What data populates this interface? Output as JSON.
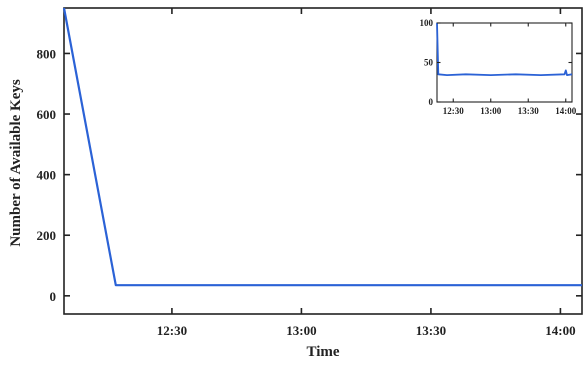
{
  "chart_data": [
    {
      "type": "line",
      "title": "",
      "xlabel": "Time",
      "ylabel": "Number of Available Keys",
      "x_tick_labels": [
        "12:30",
        "13:00",
        "13:30",
        "14:00"
      ],
      "x_tick_values": [
        "12:30",
        "13:00",
        "13:30",
        "14:00"
      ],
      "xlim": [
        "12:05",
        "14:05"
      ],
      "y_ticks": [
        0,
        200,
        400,
        600,
        800
      ],
      "ylim": [
        -60,
        950
      ],
      "grid": false,
      "series": [
        {
          "color": "#2b62d6",
          "x": [
            "12:05",
            "12:17",
            "12:30",
            "13:00",
            "13:30",
            "14:00",
            "14:05"
          ],
          "y": [
            950,
            35,
            35,
            35,
            35,
            35,
            35
          ]
        }
      ]
    },
    {
      "type": "line",
      "title": "",
      "inset": true,
      "x_tick_labels": [
        "12:30",
        "13:00",
        "13:30",
        "14:00"
      ],
      "x_tick_values": [
        "12:30",
        "13:00",
        "13:30",
        "14:00"
      ],
      "xlim": [
        "12:17",
        "14:05"
      ],
      "y_ticks": [
        0,
        50,
        100
      ],
      "ylim": [
        0,
        100
      ],
      "grid": false,
      "series": [
        {
          "color": "#2b62d6",
          "x": [
            "12:17",
            "12:18",
            "12:25",
            "12:40",
            "13:00",
            "13:20",
            "13:40",
            "13:59",
            "14:00",
            "14:01",
            "14:05"
          ],
          "y": [
            100,
            35,
            34,
            35,
            34,
            35,
            34,
            35,
            40,
            34,
            35
          ]
        }
      ]
    }
  ]
}
